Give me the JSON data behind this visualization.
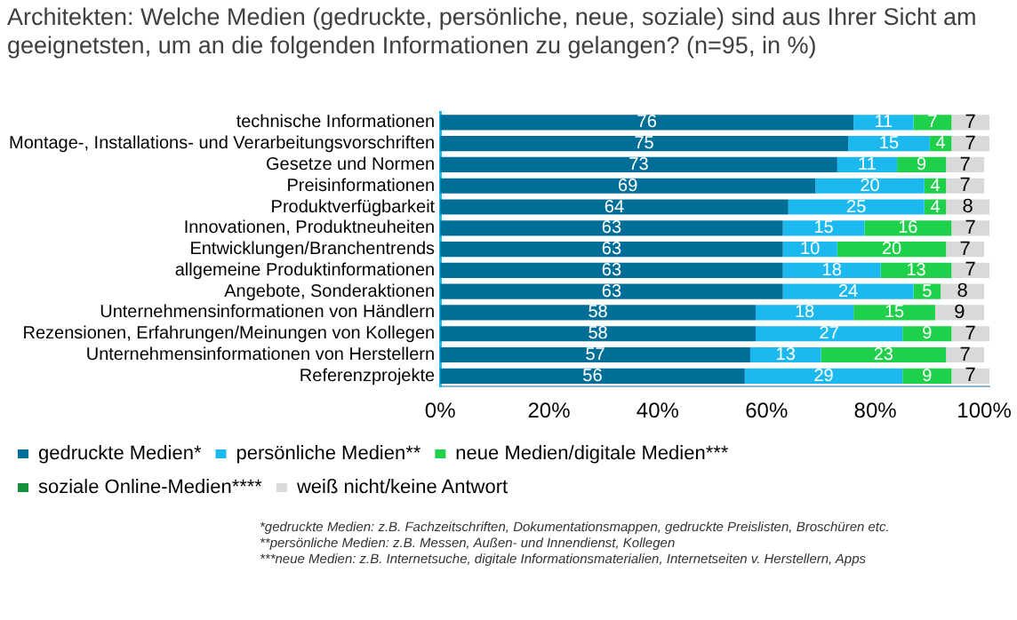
{
  "chart_data": {
    "type": "bar",
    "orientation": "horizontal",
    "stacked": true,
    "title": "Architekten: Welche Medien (gedruckte, persönliche, neue, soziale) sind aus Ihrer Sicht am geeignetsten, um an die folgenden Informationen zu gelangen? (n=95, in %)",
    "categories": [
      "technische Informationen",
      "Montage-, Installations- und Verarbeitungsvorschriften",
      "Gesetze und Normen",
      "Preisinformationen",
      "Produktverfügbarkeit",
      "Innovationen, Produktneuheiten",
      "Entwicklungen/Branchentrends",
      "allgemeine Produktinformationen",
      "Angebote, Sonderaktionen",
      "Unternehmensinformationen von Händlern",
      "Rezensionen, Erfahrungen/Meinungen von Kollegen",
      "Unternehmensinformationen von Herstellern",
      "Referenzprojekte"
    ],
    "series": [
      {
        "name": "gedruckte Medien*",
        "color": "#006f98",
        "values": [
          76,
          75,
          73,
          69,
          64,
          63,
          63,
          63,
          63,
          58,
          58,
          57,
          56
        ]
      },
      {
        "name": "persönliche Medien**",
        "color": "#1cb9f0",
        "values": [
          11,
          15,
          11,
          20,
          25,
          15,
          10,
          18,
          24,
          18,
          27,
          13,
          29
        ]
      },
      {
        "name": "neue Medien/digitale Medien***",
        "color": "#1fd04a",
        "values": [
          7,
          4,
          9,
          4,
          4,
          16,
          20,
          13,
          5,
          15,
          9,
          23,
          9
        ]
      },
      {
        "name": "soziale Online-Medien****",
        "color": "#13913d",
        "values": [
          null,
          null,
          null,
          null,
          null,
          null,
          null,
          null,
          null,
          null,
          null,
          null,
          null
        ]
      },
      {
        "name": "weiß nicht/keine Antwort",
        "color": "#d9d9d9",
        "values": [
          7,
          7,
          7,
          7,
          8,
          7,
          7,
          7,
          8,
          9,
          7,
          7,
          7
        ]
      }
    ],
    "xlim": [
      0,
      101
    ],
    "xticks": [
      {
        "value": 0,
        "label": "0%"
      },
      {
        "value": 20,
        "label": "20%"
      },
      {
        "value": 40,
        "label": "40%"
      },
      {
        "value": 60,
        "label": "60%"
      },
      {
        "value": 80,
        "label": "80%"
      },
      {
        "value": 100,
        "label": "100%"
      }
    ],
    "data_labels": true,
    "grid": false,
    "legend": "bottom",
    "annotations": [
      "*gedruckte Medien: z.B. Fachzeitschriften, Dokumentationsmappen, gedruckte Preislisten, Broschüren etc.",
      "**persönliche Medien: z.B. Messen, Außen- und Innendienst, Kollegen",
      "***neue Medien: z.B. Internetsuche, digitale Informationsmaterialien, Internetseiten v. Herstellern, Apps"
    ]
  }
}
